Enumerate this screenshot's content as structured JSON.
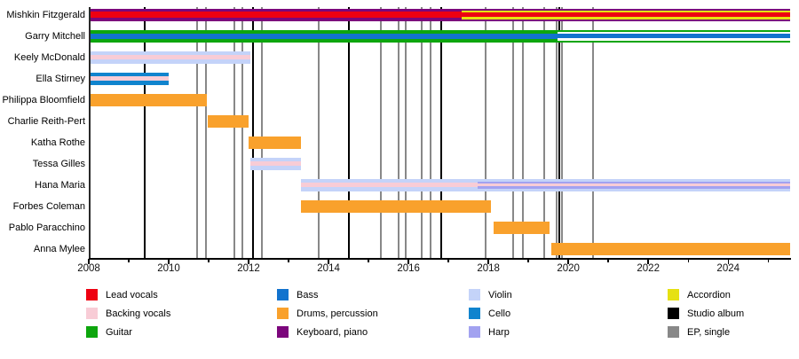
{
  "chart_data": {
    "type": "bar",
    "subtype": "band-member-timeline-gantt",
    "title": "",
    "x_axis": {
      "start": 2008,
      "end": 2025.55,
      "major_ticks": [
        2008,
        2010,
        2012,
        2014,
        2016,
        2018,
        2020,
        2022,
        2024
      ],
      "minor_tick_step": 1,
      "grid": false
    },
    "palette": {
      "lead": "#ee0011",
      "backing": "#f8ccd6",
      "guitar": "#0da60d",
      "bass": "#1273ce",
      "drums": "#f9a12c",
      "keyboard": "#7c067c",
      "violin": "#c4d3f9",
      "cello": "#1084ce",
      "harp": "#a2a2f0",
      "accordion": "#e6e112",
      "album": "#000000",
      "ep": "#888888",
      "white": "#ffffff"
    },
    "members": [
      {
        "name": "Mishkin Fitzgerald",
        "segments": [
          {
            "start": 2008.0,
            "end": 2017.33,
            "stripes": [
              [
                "keyboard",
                3.5
              ],
              [
                "lead",
                7
              ],
              [
                "keyboard",
                3.5
              ]
            ]
          },
          {
            "start": 2017.33,
            "end": 2025.55,
            "stripes": [
              [
                "keyboard",
                2
              ],
              [
                "accordion",
                2.5
              ],
              [
                "lead",
                5
              ],
              [
                "accordion",
                2.5
              ],
              [
                "keyboard",
                2
              ]
            ]
          }
        ]
      },
      {
        "name": "Garry Mitchell",
        "segments": [
          {
            "start": 2008.0,
            "end": 2019.72,
            "stripes": [
              [
                "guitar",
                4
              ],
              [
                "bass",
                6
              ],
              [
                "guitar",
                4
              ]
            ]
          },
          {
            "start": 2019.72,
            "end": 2025.55,
            "stripes": [
              [
                "guitar",
                2
              ],
              [
                "white",
                2.5
              ],
              [
                "bass",
                5
              ],
              [
                "white",
                2.5
              ],
              [
                "guitar",
                2
              ]
            ]
          }
        ]
      },
      {
        "name": "Keely McDonald",
        "segments": [
          {
            "start": 2008.0,
            "end": 2012.05,
            "stripes": [
              [
                "violin",
                4.5
              ],
              [
                "backing",
                5
              ],
              [
                "violin",
                4.5
              ]
            ]
          }
        ]
      },
      {
        "name": "Ella Stirney",
        "segments": [
          {
            "start": 2008.0,
            "end": 2010.0,
            "stripes": [
              [
                "cello",
                4.5
              ],
              [
                "backing",
                5
              ],
              [
                "cello",
                4.5
              ]
            ]
          }
        ]
      },
      {
        "name": "Philippa Bloomfield",
        "segments": [
          {
            "start": 2008.0,
            "end": 2010.95,
            "stripes": [
              [
                "drums",
                1
              ]
            ]
          }
        ]
      },
      {
        "name": "Charlie Reith-Pert",
        "segments": [
          {
            "start": 2010.97,
            "end": 2012.0,
            "stripes": [
              [
                "drums",
                1
              ]
            ]
          }
        ]
      },
      {
        "name": "Katha Rothe",
        "segments": [
          {
            "start": 2012.0,
            "end": 2013.3,
            "stripes": [
              [
                "drums",
                1
              ]
            ]
          }
        ]
      },
      {
        "name": "Tessa Gilles",
        "segments": [
          {
            "start": 2012.05,
            "end": 2013.3,
            "stripes": [
              [
                "violin",
                4.5
              ],
              [
                "backing",
                5
              ],
              [
                "violin",
                4.5
              ]
            ]
          }
        ]
      },
      {
        "name": "Hana Maria",
        "segments": [
          {
            "start": 2013.3,
            "end": 2017.74,
            "stripes": [
              [
                "violin",
                4.5
              ],
              [
                "backing",
                5
              ],
              [
                "violin",
                4.5
              ]
            ]
          },
          {
            "start": 2017.74,
            "end": 2025.55,
            "stripes": [
              [
                "violin",
                3
              ],
              [
                "harp",
                2.5
              ],
              [
                "backing",
                3
              ],
              [
                "harp",
                2.5
              ],
              [
                "violin",
                3
              ]
            ]
          }
        ]
      },
      {
        "name": "Forbes Coleman",
        "segments": [
          {
            "start": 2013.3,
            "end": 2018.07,
            "stripes": [
              [
                "drums",
                1
              ]
            ]
          }
        ]
      },
      {
        "name": "Pablo Paracchino",
        "segments": [
          {
            "start": 2018.12,
            "end": 2019.53,
            "stripes": [
              [
                "drums",
                1
              ]
            ]
          }
        ]
      },
      {
        "name": "Anna Mylee",
        "segments": [
          {
            "start": 2019.58,
            "end": 2025.55,
            "stripes": [
              [
                "drums",
                1
              ]
            ]
          }
        ]
      }
    ],
    "events": [
      {
        "year": 2009.4,
        "type": "album"
      },
      {
        "year": 2010.7,
        "type": "ep"
      },
      {
        "year": 2010.93,
        "type": "ep"
      },
      {
        "year": 2011.65,
        "type": "ep"
      },
      {
        "year": 2011.85,
        "type": "ep"
      },
      {
        "year": 2012.1,
        "type": "album"
      },
      {
        "year": 2012.33,
        "type": "ep"
      },
      {
        "year": 2013.75,
        "type": "ep"
      },
      {
        "year": 2014.5,
        "type": "album"
      },
      {
        "year": 2015.3,
        "type": "ep"
      },
      {
        "year": 2015.76,
        "type": "ep"
      },
      {
        "year": 2015.94,
        "type": "ep"
      },
      {
        "year": 2016.33,
        "type": "ep"
      },
      {
        "year": 2016.56,
        "type": "ep"
      },
      {
        "year": 2016.82,
        "type": "album"
      },
      {
        "year": 2017.93,
        "type": "ep"
      },
      {
        "year": 2018.62,
        "type": "ep"
      },
      {
        "year": 2018.87,
        "type": "ep"
      },
      {
        "year": 2019.4,
        "type": "ep"
      },
      {
        "year": 2019.7,
        "type": "ep"
      },
      {
        "year": 2019.77,
        "type": "album"
      },
      {
        "year": 2019.85,
        "type": "ep"
      },
      {
        "year": 2020.62,
        "type": "ep"
      }
    ],
    "legend": {
      "position": "bottom",
      "columns": [
        [
          {
            "label": "Lead vocals",
            "color": "lead"
          },
          {
            "label": "Backing vocals",
            "color": "backing"
          },
          {
            "label": "Guitar",
            "color": "guitar"
          }
        ],
        [
          {
            "label": "Bass",
            "color": "bass"
          },
          {
            "label": "Drums, percussion",
            "color": "drums"
          },
          {
            "label": "Keyboard, piano",
            "color": "keyboard"
          }
        ],
        [
          {
            "label": "Violin",
            "color": "violin"
          },
          {
            "label": "Cello",
            "color": "cello"
          },
          {
            "label": "Harp",
            "color": "harp"
          }
        ],
        [
          {
            "label": "Accordion",
            "color": "accordion"
          },
          {
            "label": "Studio album",
            "color": "album"
          },
          {
            "label": "EP, single",
            "color": "ep"
          }
        ]
      ]
    }
  }
}
